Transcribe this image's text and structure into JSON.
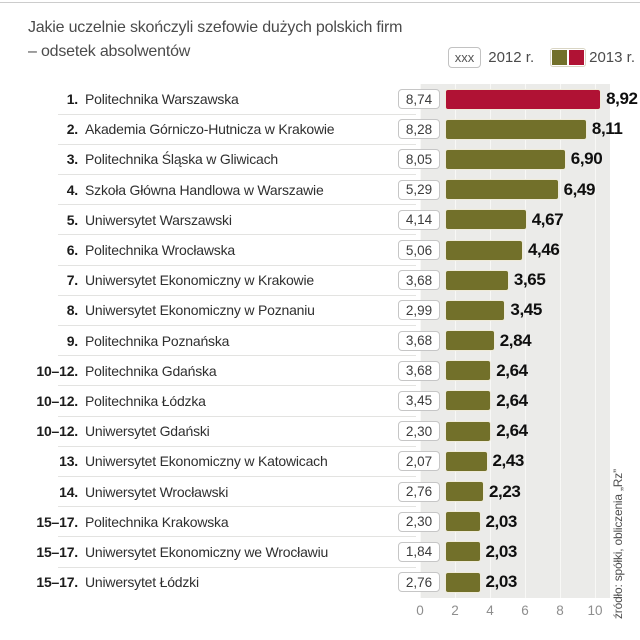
{
  "title_line1": "Jakie uczelnie skończyli szefowie dużych polskich firm",
  "title_line2": "– odsetek absolwentów",
  "legend": {
    "box_label": "xxx",
    "label_2012": "2012 r.",
    "label_2013": "2013 r."
  },
  "source": "źródło: spółki, obliczenia „Rz”",
  "colors": {
    "bar_default": "#72702a",
    "bar_highlight": "#b01234",
    "plot_background": "#ebebe9",
    "gridline": "#f8f8f6"
  },
  "axis": {
    "ticks": [
      "0",
      "2",
      "4",
      "6",
      "8",
      "10"
    ],
    "max": 10
  },
  "rows": [
    {
      "rank": "1.",
      "name": "Politechnika Warszawska",
      "v2012": "8,74",
      "v2013": "8,92",
      "highlight": true
    },
    {
      "rank": "2.",
      "name": "Akademia Górniczo-Hutnicza w Krakowie",
      "v2012": "8,28",
      "v2013": "8,11",
      "highlight": false
    },
    {
      "rank": "3.",
      "name": "Politechnika Śląska w Gliwicach",
      "v2012": "8,05",
      "v2013": "6,90",
      "highlight": false
    },
    {
      "rank": "4.",
      "name": "Szkoła Główna Handlowa w Warszawie",
      "v2012": "5,29",
      "v2013": "6,49",
      "highlight": false
    },
    {
      "rank": "5.",
      "name": "Uniwersytet Warszawski",
      "v2012": "4,14",
      "v2013": "4,67",
      "highlight": false
    },
    {
      "rank": "6.",
      "name": "Politechnika Wrocławska",
      "v2012": "5,06",
      "v2013": "4,46",
      "highlight": false
    },
    {
      "rank": "7.",
      "name": "Uniwersytet Ekonomiczny w Krakowie",
      "v2012": "3,68",
      "v2013": "3,65",
      "highlight": false
    },
    {
      "rank": "8.",
      "name": "Uniwersytet Ekonomiczny w Poznaniu",
      "v2012": "2,99",
      "v2013": "3,45",
      "highlight": false
    },
    {
      "rank": "9.",
      "name": "Politechnika Poznańska",
      "v2012": "3,68",
      "v2013": "2,84",
      "highlight": false
    },
    {
      "rank": "10–12.",
      "name": "Politechnika Gdańska",
      "v2012": "3,68",
      "v2013": "2,64",
      "highlight": false
    },
    {
      "rank": "10–12.",
      "name": "Politechnika Łódzka",
      "v2012": "3,45",
      "v2013": "2,64",
      "highlight": false
    },
    {
      "rank": "10–12.",
      "name": "Uniwersytet Gdański",
      "v2012": "2,30",
      "v2013": "2,64",
      "highlight": false
    },
    {
      "rank": "13.",
      "name": "Uniwersytet Ekonomiczny w Katowicach",
      "v2012": "2,07",
      "v2013": "2,43",
      "highlight": false
    },
    {
      "rank": "14.",
      "name": "Uniwersytet Wrocławski",
      "v2012": "2,76",
      "v2013": "2,23",
      "highlight": false
    },
    {
      "rank": "15–17.",
      "name": "Politechnika Krakowska",
      "v2012": "2,30",
      "v2013": "2,03",
      "highlight": false
    },
    {
      "rank": "15–17.",
      "name": "Uniwersytet Ekonomiczny we Wrocławiu",
      "v2012": "1,84",
      "v2013": "2,03",
      "highlight": false
    },
    {
      "rank": "15–17.",
      "name": "Uniwersytet Łódzki",
      "v2012": "2,76",
      "v2013": "2,03",
      "highlight": false
    }
  ],
  "chart_data": {
    "type": "bar",
    "orientation": "horizontal",
    "title": "Jakie uczelnie skończyli szefowie dużych polskich firm – odsetek absolwentów",
    "categories": [
      "Politechnika Warszawska",
      "Akademia Górniczo-Hutnicza w Krakowie",
      "Politechnika Śląska w Gliwicach",
      "Szkoła Główna Handlowa w Warszawie",
      "Uniwersytet Warszawski",
      "Politechnika Wrocławska",
      "Uniwersytet Ekonomiczny w Krakowie",
      "Uniwersytet Ekonomiczny w Poznaniu",
      "Politechnika Poznańska",
      "Politechnika Gdańska",
      "Politechnika Łódzka",
      "Uniwersytet Gdański",
      "Uniwersytet Ekonomiczny w Katowicach",
      "Uniwersytet Wrocławski",
      "Politechnika Krakowska",
      "Uniwersytet Ekonomiczny we Wrocławiu",
      "Uniwersytet Łódzki"
    ],
    "ranks": [
      "1.",
      "2.",
      "3.",
      "4.",
      "5.",
      "6.",
      "7.",
      "8.",
      "9.",
      "10–12.",
      "10–12.",
      "10–12.",
      "13.",
      "14.",
      "15–17.",
      "15–17.",
      "15–17."
    ],
    "series": [
      {
        "name": "2012 r.",
        "values": [
          8.74,
          8.28,
          8.05,
          5.29,
          4.14,
          5.06,
          3.68,
          2.99,
          3.68,
          3.68,
          3.45,
          2.3,
          2.07,
          2.76,
          2.3,
          1.84,
          2.76
        ]
      },
      {
        "name": "2013 r.",
        "values": [
          8.92,
          8.11,
          6.9,
          6.49,
          4.67,
          4.46,
          3.65,
          3.45,
          2.84,
          2.64,
          2.64,
          2.64,
          2.43,
          2.23,
          2.03,
          2.03,
          2.03
        ]
      }
    ],
    "bars_plotted_for": "2013 r.",
    "highlight_category": "Politechnika Warszawska",
    "xlim": [
      0,
      10
    ],
    "x_ticks": [
      0,
      2,
      4,
      6,
      8,
      10
    ],
    "grid": true,
    "legend_position": "top-right"
  }
}
